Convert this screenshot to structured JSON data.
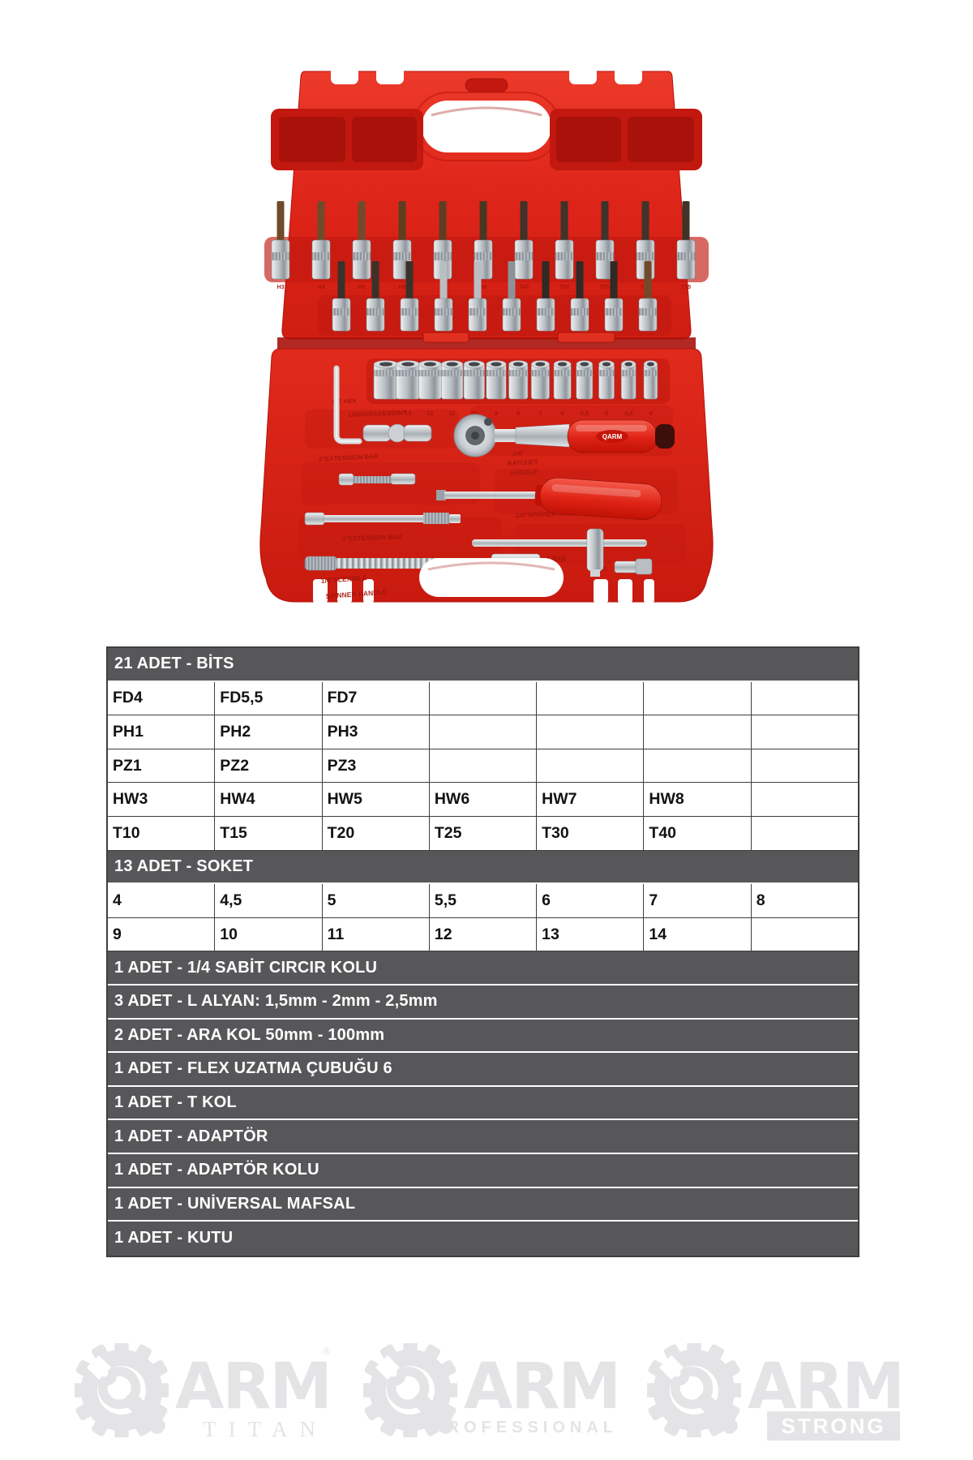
{
  "photo": {
    "bit_row1_labels": [
      "H3",
      "H4",
      "H5",
      "H6",
      "H7",
      "H8",
      "T40",
      "T30",
      "T25",
      "T20",
      "T15"
    ],
    "socket_labels": [
      "14",
      "13",
      "12",
      "11",
      "10",
      "9",
      "8",
      "7",
      "6",
      "5,5",
      "5",
      "4,5",
      "4"
    ],
    "case_labels": {
      "bit_hex": "BIT HEX",
      "universal_joint": "UNIVERSAL JOINT",
      "ext2": "2\"EXTENSION BAR",
      "ratchet1": "1/4\"",
      "ratchet2": "RATCHET",
      "ratchet3": "HANDLE",
      "spinner": "1/4\"SPINNER HANDLE",
      "ext4": "4\"EXTENSION BAR",
      "tbar": "T-BAR",
      "flex1": "1/4\"FLEXIBLE",
      "flex2": "SPINNER HANDLE",
      "adapter": "AD.",
      "brand": "QARM"
    }
  },
  "table": {
    "sections": [
      {
        "type": "header",
        "label": "21 ADET - BİTS"
      },
      {
        "type": "grid",
        "rows": [
          [
            "FD4",
            "FD5,5",
            "FD7",
            "",
            "",
            "",
            ""
          ],
          [
            "PH1",
            "PH2",
            "PH3",
            "",
            "",
            "",
            ""
          ],
          [
            "PZ1",
            "PZ2",
            "PZ3",
            "",
            "",
            "",
            ""
          ],
          [
            "HW3",
            "HW4",
            "HW5",
            "HW6",
            "HW7",
            "HW8",
            ""
          ],
          [
            "T10",
            "T15",
            "T20",
            "T25",
            "T30",
            "T40",
            ""
          ]
        ]
      },
      {
        "type": "header",
        "label": "13 ADET - SOKET"
      },
      {
        "type": "grid",
        "rows": [
          [
            "4",
            "4,5",
            "5",
            "5,5",
            "6",
            "7",
            "8"
          ],
          [
            "9",
            "10",
            "11",
            "12",
            "13",
            "14",
            ""
          ]
        ]
      },
      {
        "type": "header",
        "label": "1 ADET - 1/4 SABİT CIRCIR KOLU"
      },
      {
        "type": "header",
        "label": "3 ADET - L ALYAN: 1,5mm - 2mm - 2,5mm"
      },
      {
        "type": "header",
        "label": "2 ADET - ARA KOL 50mm - 100mm"
      },
      {
        "type": "header",
        "label": "1 ADET - FLEX UZATMA ÇUBUĞU 6"
      },
      {
        "type": "header",
        "label": "1 ADET - T KOL"
      },
      {
        "type": "header",
        "label": "1 ADET - ADAPTÖR"
      },
      {
        "type": "header",
        "label": "1 ADET - ADAPTÖR KOLU"
      },
      {
        "type": "header",
        "label": "1 ADET - UNİVERSAL MAFSAL"
      },
      {
        "type": "header",
        "label": "1 ADET - KUTU"
      }
    ]
  },
  "logos": [
    {
      "brand": "ARM",
      "sub": "TITAN",
      "registered": "®"
    },
    {
      "brand": "ARM",
      "sub": "PROFESSIONAL"
    },
    {
      "brand": "ARM",
      "sub": "STRONG"
    }
  ],
  "colors": {
    "header_bg": "#57575A",
    "cell_border": "#3E3E3E",
    "case_red": "#D8241A",
    "logo_gray": "#E4E4E6"
  }
}
